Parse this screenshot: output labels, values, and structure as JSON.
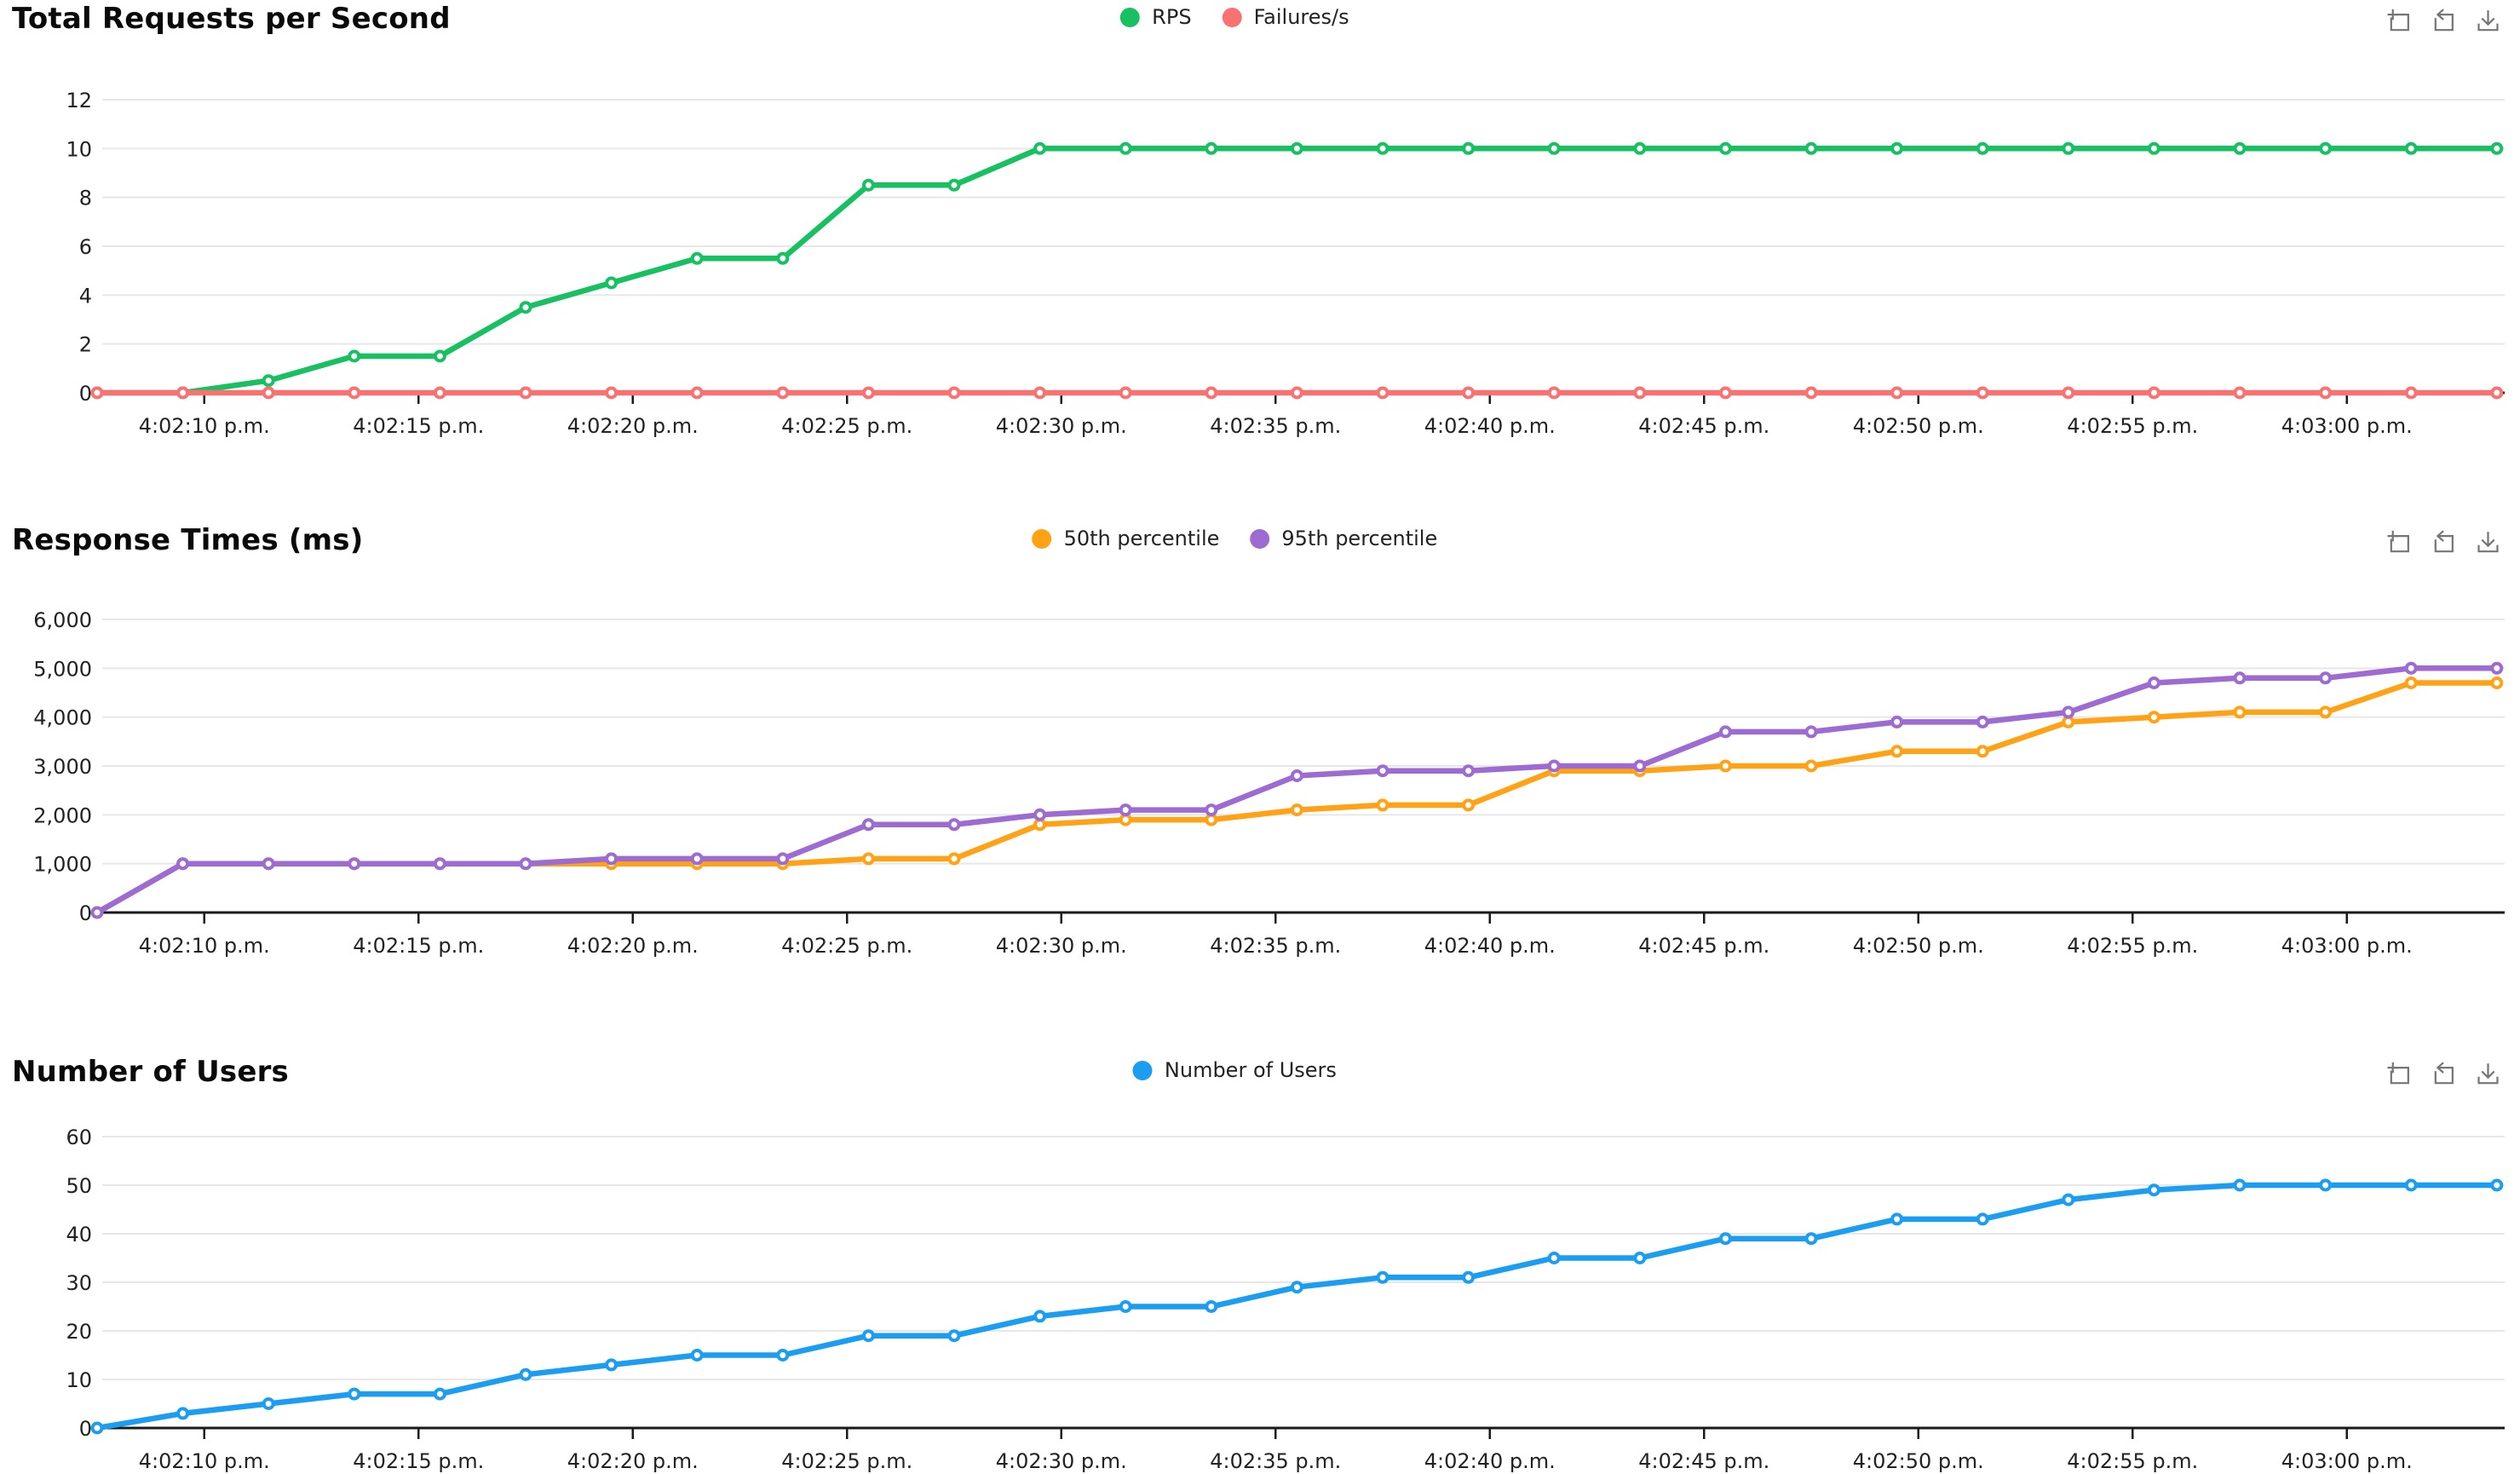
{
  "page": {
    "background": "#ffffff"
  },
  "toolbox": {
    "color": "#757575",
    "icons": [
      {
        "name": "box-zoom-icon"
      },
      {
        "name": "restore-icon"
      },
      {
        "name": "download-icon"
      }
    ]
  },
  "chart_data": [
    {
      "type": "line",
      "title": "Total Requests per Second",
      "legend_position": "top-center",
      "grid": "horizontal",
      "x_seconds_after_4_02_00_pm": [
        7.5,
        9.5,
        11.5,
        13.5,
        15.5,
        17.5,
        19.5,
        21.5,
        23.5,
        25.5,
        27.5,
        29.5,
        31.5,
        33.5,
        35.5,
        37.5,
        39.5,
        41.5,
        43.5,
        45.5,
        47.5,
        49.5,
        51.5,
        53.5,
        55.5,
        57.5,
        59.5,
        61.5,
        63.5
      ],
      "x_tick_seconds": [
        10,
        15,
        20,
        25,
        30,
        35,
        40,
        45,
        50,
        55,
        60
      ],
      "x_tick_labels": [
        "4:02:10 p.m.",
        "4:02:15 p.m.",
        "4:02:20 p.m.",
        "4:02:25 p.m.",
        "4:02:30 p.m.",
        "4:02:35 p.m.",
        "4:02:40 p.m.",
        "4:02:45 p.m.",
        "4:02:50 p.m.",
        "4:02:55 p.m.",
        "4:03:00 p.m."
      ],
      "ylim": [
        0,
        12
      ],
      "y_ticks": [
        0,
        2,
        4,
        6,
        8,
        10,
        12
      ],
      "y_tick_labels": [
        "0",
        "2",
        "4",
        "6",
        "8",
        "10",
        "12"
      ],
      "series": [
        {
          "name": "RPS",
          "color": "#17c161",
          "values": [
            0,
            0,
            0.5,
            1.5,
            1.5,
            3.5,
            4.5,
            5.5,
            5.5,
            8.5,
            8.5,
            10,
            10,
            10,
            10,
            10,
            10,
            10,
            10,
            10,
            10,
            10,
            10,
            10,
            10,
            10,
            10,
            10,
            10
          ]
        },
        {
          "name": "Failures/s",
          "color": "#f87272",
          "values": [
            0,
            0,
            0,
            0,
            0,
            0,
            0,
            0,
            0,
            0,
            0,
            0,
            0,
            0,
            0,
            0,
            0,
            0,
            0,
            0,
            0,
            0,
            0,
            0,
            0,
            0,
            0,
            0,
            0
          ]
        }
      ]
    },
    {
      "type": "line",
      "title": "Response Times (ms)",
      "legend_position": "top-center",
      "grid": "horizontal",
      "x_seconds_after_4_02_00_pm": [
        7.5,
        9.5,
        11.5,
        13.5,
        15.5,
        17.5,
        19.5,
        21.5,
        23.5,
        25.5,
        27.5,
        29.5,
        31.5,
        33.5,
        35.5,
        37.5,
        39.5,
        41.5,
        43.5,
        45.5,
        47.5,
        49.5,
        51.5,
        53.5,
        55.5,
        57.5,
        59.5,
        61.5,
        63.5
      ],
      "x_tick_seconds": [
        10,
        15,
        20,
        25,
        30,
        35,
        40,
        45,
        50,
        55,
        60
      ],
      "x_tick_labels": [
        "4:02:10 p.m.",
        "4:02:15 p.m.",
        "4:02:20 p.m.",
        "4:02:25 p.m.",
        "4:02:30 p.m.",
        "4:02:35 p.m.",
        "4:02:40 p.m.",
        "4:02:45 p.m.",
        "4:02:50 p.m.",
        "4:02:55 p.m.",
        "4:03:00 p.m."
      ],
      "ylim": [
        0,
        6000
      ],
      "y_ticks": [
        0,
        1000,
        2000,
        3000,
        4000,
        5000,
        6000
      ],
      "y_tick_labels": [
        "0",
        "1,000",
        "2,000",
        "3,000",
        "4,000",
        "5,000",
        "6,000"
      ],
      "series": [
        {
          "name": "50th percentile",
          "color": "#ffa216",
          "values": [
            0,
            1000,
            1000,
            1000,
            1000,
            1000,
            1000,
            1000,
            1000,
            1100,
            1100,
            1800,
            1900,
            1900,
            2100,
            2200,
            2200,
            2900,
            2900,
            3000,
            3000,
            3300,
            3300,
            3900,
            4000,
            4100,
            4100,
            4700,
            4700
          ]
        },
        {
          "name": "95th percentile",
          "color": "#9d6bd1",
          "values": [
            0,
            1000,
            1000,
            1000,
            1000,
            1000,
            1100,
            1100,
            1100,
            1800,
            1800,
            2000,
            2100,
            2100,
            2800,
            2900,
            2900,
            3000,
            3000,
            3700,
            3700,
            3900,
            3900,
            4100,
            4700,
            4800,
            4800,
            5000,
            5000
          ]
        }
      ]
    },
    {
      "type": "line",
      "title": "Number of Users",
      "legend_position": "top-center",
      "grid": "horizontal",
      "x_seconds_after_4_02_00_pm": [
        7.5,
        9.5,
        11.5,
        13.5,
        15.5,
        17.5,
        19.5,
        21.5,
        23.5,
        25.5,
        27.5,
        29.5,
        31.5,
        33.5,
        35.5,
        37.5,
        39.5,
        41.5,
        43.5,
        45.5,
        47.5,
        49.5,
        51.5,
        53.5,
        55.5,
        57.5,
        59.5,
        61.5,
        63.5
      ],
      "x_tick_seconds": [
        10,
        15,
        20,
        25,
        30,
        35,
        40,
        45,
        50,
        55,
        60
      ],
      "x_tick_labels": [
        "4:02:10 p.m.",
        "4:02:15 p.m.",
        "4:02:20 p.m.",
        "4:02:25 p.m.",
        "4:02:30 p.m.",
        "4:02:35 p.m.",
        "4:02:40 p.m.",
        "4:02:45 p.m.",
        "4:02:50 p.m.",
        "4:02:55 p.m.",
        "4:03:00 p.m."
      ],
      "ylim": [
        0,
        60
      ],
      "y_ticks": [
        0,
        10,
        20,
        30,
        40,
        50,
        60
      ],
      "y_tick_labels": [
        "0",
        "10",
        "20",
        "30",
        "40",
        "50",
        "60"
      ],
      "series": [
        {
          "name": "Number of Users",
          "color": "#1b9ef2",
          "values": [
            0,
            3,
            5,
            7,
            7,
            11,
            13,
            15,
            15,
            19,
            19,
            23,
            25,
            25,
            29,
            31,
            31,
            35,
            35,
            39,
            39,
            43,
            43,
            47,
            49,
            50,
            50,
            50,
            50
          ]
        }
      ]
    }
  ]
}
